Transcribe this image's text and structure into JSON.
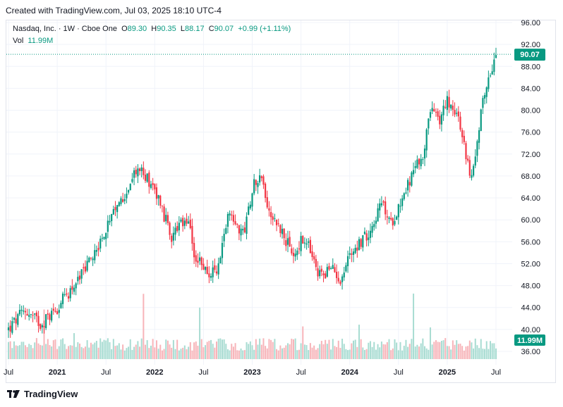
{
  "header": {
    "created": "Created with TradingView.com, Jul 03, 2025 18:10 UTC-4"
  },
  "legend": {
    "symbol": "Nasdaq, Inc. · 1W · Cboe One",
    "o_label": "O",
    "o_value": "89.30",
    "h_label": "H",
    "h_value": "90.35",
    "l_label": "L",
    "l_value": "88.17",
    "c_label": "C",
    "c_value": "90.07",
    "change": "+0.99 (+1.11%)",
    "vol_label": "Vol",
    "vol_value": "11.99M"
  },
  "footer": {
    "brand": "TradingView"
  },
  "colors": {
    "up": "#089981",
    "down": "#f23645",
    "up_vol": "#a8dcd2",
    "down_vol": "#f7b4b9",
    "grid": "#f0f3fa"
  },
  "chart_data": {
    "type": "candlestick",
    "yaxis_ticks": [
      "96.00",
      "92.00",
      "88.00",
      "84.00",
      "80.00",
      "76.00",
      "72.00",
      "68.00",
      "64.00",
      "60.00",
      "56.00",
      "52.00",
      "48.00",
      "44.00",
      "40.00",
      "36.00"
    ],
    "ylim": [
      34.2,
      96.0
    ],
    "xaxis_ticks": [
      "Jul",
      "2021",
      "Jul",
      "2022",
      "Jul",
      "2023",
      "Jul",
      "2024",
      "Jul",
      "2025",
      "Jul"
    ],
    "last_price_label": "90.07",
    "volume_label": "11.99M",
    "close_path": [
      [
        "2020-07",
        40.0
      ],
      [
        "2020-09",
        43.5
      ],
      [
        "2020-11",
        41.0
      ],
      [
        "2021-01",
        44.0
      ],
      [
        "2021-04",
        50.0
      ],
      [
        "2021-07",
        58.0
      ],
      [
        "2021-09",
        64.0
      ],
      [
        "2021-11",
        69.5
      ],
      [
        "2022-01",
        66.0
      ],
      [
        "2022-03",
        57.0
      ],
      [
        "2022-05",
        60.0
      ],
      [
        "2022-06",
        53.0
      ],
      [
        "2022-08",
        50.0
      ],
      [
        "2022-09",
        52.0
      ],
      [
        "2022-10",
        62.0
      ],
      [
        "2022-12",
        57.0
      ],
      [
        "2023-01",
        66.0
      ],
      [
        "2023-02",
        68.5
      ],
      [
        "2023-03",
        62.0
      ],
      [
        "2023-05",
        57.0
      ],
      [
        "2023-06",
        53.0
      ],
      [
        "2023-07",
        56.0
      ],
      [
        "2023-08",
        55.0
      ],
      [
        "2023-09",
        50.0
      ],
      [
        "2023-11",
        51.0
      ],
      [
        "2023-12",
        49.0
      ],
      [
        "2024-01",
        54.0
      ],
      [
        "2024-03",
        57.0
      ],
      [
        "2024-05",
        63.0
      ],
      [
        "2024-06",
        59.0
      ],
      [
        "2024-08",
        66.0
      ],
      [
        "2024-10",
        72.0
      ],
      [
        "2024-11",
        80.0
      ],
      [
        "2024-12",
        78.0
      ],
      [
        "2025-01",
        82.0
      ],
      [
        "2025-02",
        80.0
      ],
      [
        "2025-03",
        74.0
      ],
      [
        "2025-04",
        67.0
      ],
      [
        "2025-05",
        78.0
      ],
      [
        "2025-06",
        86.0
      ],
      [
        "2025-07",
        90.07
      ]
    ]
  }
}
